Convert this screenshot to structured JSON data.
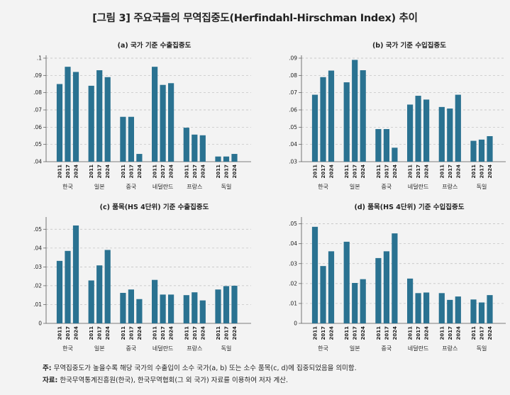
{
  "figure_title": "[그림 3] 주요국들의 무역집중도(Herfindahl-Hirschman Index) 추이",
  "colors": {
    "bar": "#2a7291",
    "grid": "#bdbdbd",
    "axis": "#555555",
    "background": "#f3f3f3"
  },
  "chart_data": [
    {
      "type": "bar",
      "title": "(a) 국가 기준 수출집중도",
      "categories": [
        "한국",
        "일본",
        "중국",
        "네덜란드",
        "프랑스",
        "독일"
      ],
      "years": [
        "2011",
        "2017",
        "2024"
      ],
      "ylim": [
        0.04,
        0.1
      ],
      "yticks": [
        0.04,
        0.05,
        0.06,
        0.07,
        0.08,
        0.09,
        0.1
      ],
      "ytick_labels": [
        ".04",
        ".05",
        ".06",
        ".07",
        ".08",
        ".09",
        ".1"
      ],
      "grid": true,
      "values": [
        [
          0.085,
          0.095,
          0.092
        ],
        [
          0.084,
          0.093,
          0.089
        ],
        [
          0.066,
          0.066,
          0.0445
        ],
        [
          0.095,
          0.0845,
          0.0855
        ],
        [
          0.0597,
          0.0557,
          0.0553
        ],
        [
          0.043,
          0.043,
          0.0445
        ]
      ]
    },
    {
      "type": "bar",
      "title": "(b) 국가 기준 수입집중도",
      "categories": [
        "한국",
        "일본",
        "중국",
        "네덜란드",
        "프랑스",
        "독일"
      ],
      "years": [
        "2011",
        "2017",
        "2024"
      ],
      "ylim": [
        0.03,
        0.09
      ],
      "yticks": [
        0.03,
        0.04,
        0.05,
        0.06,
        0.07,
        0.08,
        0.09
      ],
      "ytick_labels": [
        ".03",
        ".04",
        ".05",
        ".06",
        ".07",
        ".08",
        ".09"
      ],
      "grid": true,
      "values": [
        [
          0.0688,
          0.079,
          0.0828
        ],
        [
          0.076,
          0.089,
          0.083
        ],
        [
          0.0489,
          0.0489,
          0.0381
        ],
        [
          0.0631,
          0.0682,
          0.066
        ],
        [
          0.0617,
          0.0608,
          0.0688
        ],
        [
          0.0421,
          0.0428,
          0.0448
        ]
      ]
    },
    {
      "type": "bar",
      "title": "(c) 품목(HS 4단위) 기준 수출집중도",
      "categories": [
        "한국",
        "일본",
        "중국",
        "네덜란드",
        "프랑스",
        "독일"
      ],
      "years": [
        "2011",
        "2017",
        "2024"
      ],
      "ylim": [
        0,
        0.055
      ],
      "yticks": [
        0,
        0.01,
        0.02,
        0.03,
        0.04,
        0.05
      ],
      "ytick_labels": [
        "0",
        ".01",
        ".02",
        ".03",
        ".04",
        ".05"
      ],
      "grid": true,
      "values": [
        [
          0.0332,
          0.0385,
          0.052
        ],
        [
          0.0228,
          0.0308,
          0.039
        ],
        [
          0.0162,
          0.018,
          0.0129
        ],
        [
          0.0231,
          0.0153,
          0.0153
        ],
        [
          0.015,
          0.0165,
          0.0122
        ],
        [
          0.018,
          0.0198,
          0.02
        ]
      ]
    },
    {
      "type": "bar",
      "title": "(d) 품목(HS 4단위) 기준 수입집중도",
      "categories": [
        "한국",
        "일본",
        "중국",
        "네덜란드",
        "프랑스",
        "독일"
      ],
      "years": [
        "2011",
        "2017",
        "2024"
      ],
      "ylim": [
        0,
        0.052
      ],
      "yticks": [
        0,
        0.01,
        0.02,
        0.03,
        0.04,
        0.05
      ],
      "ytick_labels": [
        "0",
        ".01",
        ".02",
        ".03",
        ".04",
        ".05"
      ],
      "grid": true,
      "values": [
        [
          0.0485,
          0.0288,
          0.0362
        ],
        [
          0.041,
          0.0203,
          0.0222
        ],
        [
          0.0328,
          0.0362,
          0.0452
        ],
        [
          0.0225,
          0.0152,
          0.0155
        ],
        [
          0.0152,
          0.0118,
          0.0135
        ],
        [
          0.012,
          0.0105,
          0.0142
        ]
      ]
    }
  ],
  "notes": {
    "note_label": "주:",
    "note_text": "무역집중도가 높을수록 해당 국가의 수출입이 소수 국가(a, b) 또는 소수 품목(c, d)에 집중되었음을 의미함.",
    "source_label": "자료:",
    "source_text": "한국무역통계진흥원(한국), 한국무역협회(그 외 국가) 자료를 이용하여 저자 계산."
  }
}
